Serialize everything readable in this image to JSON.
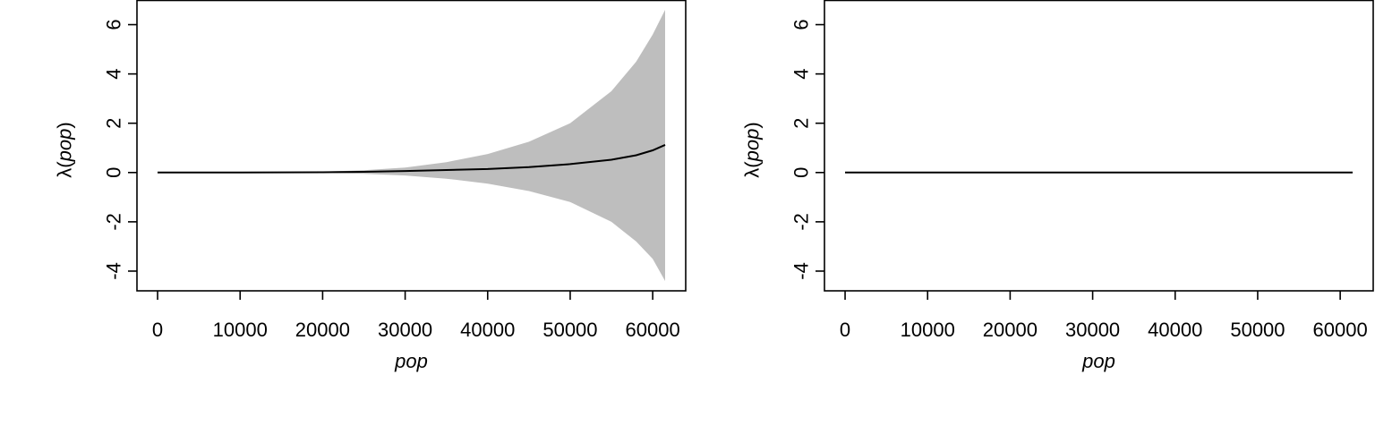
{
  "chart_data": [
    {
      "type": "line",
      "xlabel": "pop",
      "ylabel": "λ(pop)",
      "ylabel_parts": {
        "lambda": "λ",
        "open": "(",
        "var": "pop",
        "close": ")"
      },
      "xlim": [
        -2500,
        64000
      ],
      "ylim": [
        -4.8,
        7.0
      ],
      "xticks": [
        0,
        10000,
        20000,
        30000,
        40000,
        50000,
        60000
      ],
      "xtick_labels": [
        "0",
        "10000",
        "20000",
        "30000",
        "40000",
        "50000",
        "60000"
      ],
      "yticks": [
        -4,
        -2,
        0,
        2,
        4,
        6
      ],
      "ytick_labels": [
        "-4",
        "-2",
        "0",
        "2",
        "4",
        "6"
      ],
      "band_color": "#bebebe",
      "line_color": "#000000",
      "series": [
        {
          "x": [
            0,
            10000,
            20000,
            25000,
            30000,
            35000,
            40000,
            45000,
            50000,
            55000,
            58000,
            60000,
            61500
          ],
          "y": [
            0,
            0,
            0.01,
            0.03,
            0.06,
            0.1,
            0.14,
            0.22,
            0.34,
            0.52,
            0.7,
            0.9,
            1.12
          ],
          "lower": [
            0,
            0,
            -0.02,
            -0.05,
            -0.12,
            -0.25,
            -0.45,
            -0.75,
            -1.2,
            -2.0,
            -2.8,
            -3.5,
            -4.4
          ],
          "upper": [
            0,
            0,
            0.04,
            0.09,
            0.2,
            0.42,
            0.75,
            1.25,
            2.0,
            3.3,
            4.5,
            5.6,
            6.6
          ]
        }
      ]
    },
    {
      "type": "line",
      "xlabel": "pop",
      "ylabel": "λ(pop)",
      "ylabel_parts": {
        "lambda": "λ",
        "open": "(",
        "var": "pop",
        "close": ")"
      },
      "xlim": [
        -2500,
        64000
      ],
      "ylim": [
        -4.8,
        7.0
      ],
      "xticks": [
        0,
        10000,
        20000,
        30000,
        40000,
        50000,
        60000
      ],
      "xtick_labels": [
        "0",
        "10000",
        "20000",
        "30000",
        "40000",
        "50000",
        "60000"
      ],
      "yticks": [
        -4,
        -2,
        0,
        2,
        4,
        6
      ],
      "ytick_labels": [
        "-4",
        "-2",
        "0",
        "2",
        "4",
        "6"
      ],
      "line_color": "#000000",
      "series": [
        {
          "x": [
            0,
            61500
          ],
          "y": [
            0,
            0
          ]
        }
      ]
    }
  ]
}
